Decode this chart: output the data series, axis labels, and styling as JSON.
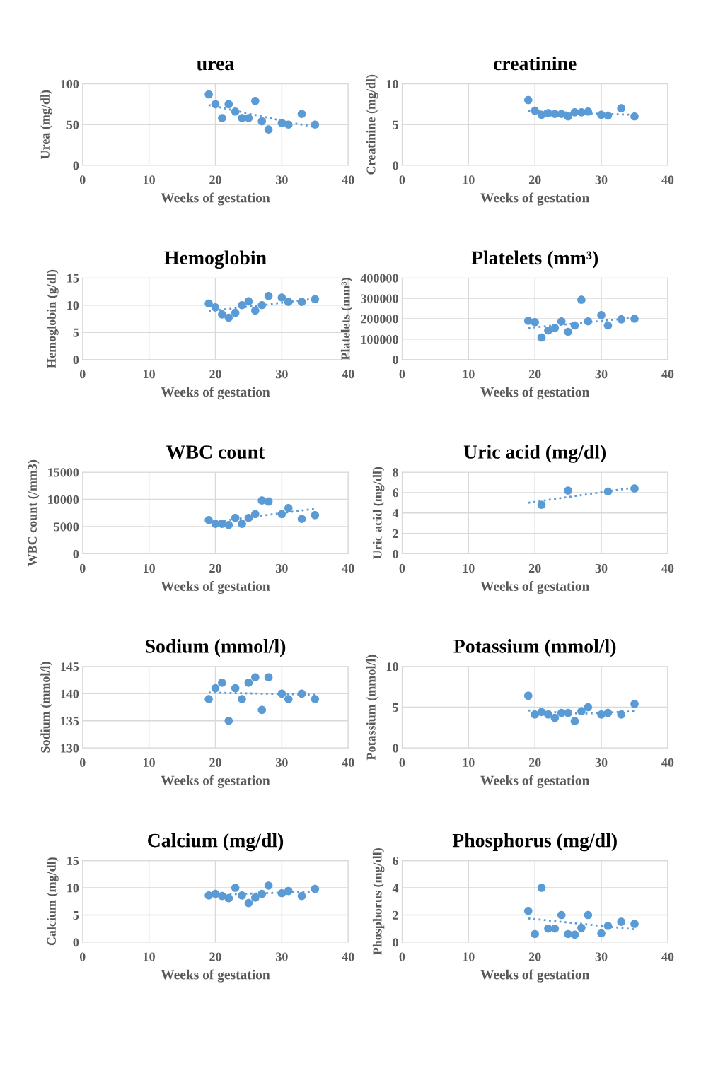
{
  "chart_data": [
    {
      "type": "scatter",
      "title": "urea",
      "xlabel": "Weeks of gestation",
      "ylabel": "Urea (mg/dl)",
      "xlim": [
        0,
        40
      ],
      "xticks": [
        0,
        10,
        20,
        30,
        40
      ],
      "ylim": [
        0,
        100
      ],
      "yticks": [
        0,
        50,
        100
      ],
      "grid": true,
      "marker": "circle",
      "series": [
        {
          "type": "scatter",
          "color": "#5b9bd5",
          "x": [
            19,
            20,
            21,
            22,
            23,
            24,
            25,
            26,
            27,
            28,
            30,
            31,
            33,
            35
          ],
          "values": [
            87,
            75,
            58,
            75,
            66,
            58,
            58,
            79,
            54,
            44,
            52,
            50,
            63,
            50
          ]
        },
        {
          "type": "line",
          "color": "#5b9bd5",
          "line_style": "dotted",
          "marker": "none",
          "x": [
            19,
            23,
            27,
            31,
            35
          ],
          "values": [
            74,
            67,
            60,
            53,
            47
          ]
        }
      ]
    },
    {
      "type": "scatter",
      "title": "creatinine",
      "xlabel": "Weeks of gestation",
      "ylabel": "Creatinine (mg/dl)",
      "xlim": [
        0,
        40
      ],
      "xticks": [
        0,
        10,
        20,
        30,
        40
      ],
      "ylim": [
        0,
        10
      ],
      "yticks": [
        0,
        5,
        10
      ],
      "grid": true,
      "marker": "circle",
      "series": [
        {
          "type": "scatter",
          "color": "#5b9bd5",
          "x": [
            19,
            20,
            21,
            22,
            23,
            24,
            25,
            26,
            27,
            28,
            30,
            31,
            33,
            35
          ],
          "values": [
            8.0,
            6.7,
            6.2,
            6.4,
            6.3,
            6.3,
            6.0,
            6.5,
            6.5,
            6.6,
            6.2,
            6.1,
            7.0,
            6.0
          ]
        },
        {
          "type": "line",
          "color": "#5b9bd5",
          "line_style": "dotted",
          "marker": "none",
          "x": [
            19,
            27,
            35
          ],
          "values": [
            6.7,
            6.4,
            6.2
          ]
        }
      ]
    },
    {
      "type": "scatter",
      "title": "Hemoglobin",
      "xlabel": "Weeks of gestation",
      "ylabel": "Hemoglobin (g/dl)",
      "xlim": [
        0,
        40
      ],
      "xticks": [
        0,
        10,
        20,
        30,
        40
      ],
      "ylim": [
        0,
        15
      ],
      "yticks": [
        0,
        5,
        10,
        15
      ],
      "grid": true,
      "marker": "circle",
      "series": [
        {
          "type": "scatter",
          "color": "#5b9bd5",
          "x": [
            19,
            20,
            21,
            22,
            23,
            24,
            25,
            26,
            27,
            28,
            30,
            31,
            33,
            35
          ],
          "values": [
            10.3,
            9.6,
            8.3,
            7.7,
            8.6,
            10.0,
            10.7,
            9.0,
            10.0,
            11.7,
            11.4,
            10.6,
            10.6,
            11.1
          ]
        },
        {
          "type": "line",
          "color": "#5b9bd5",
          "line_style": "dotted",
          "marker": "none",
          "x": [
            19,
            27,
            35
          ],
          "values": [
            8.9,
            10.0,
            11.2
          ]
        }
      ]
    },
    {
      "type": "scatter",
      "title": "Platelets (mm³)",
      "xlabel": "Weeks of gestation",
      "ylabel": "Platelets (mm³)",
      "xlim": [
        0,
        40
      ],
      "xticks": [
        0,
        10,
        20,
        30,
        40
      ],
      "ylim": [
        0,
        400000
      ],
      "yticks": [
        0,
        100000,
        200000,
        300000,
        400000
      ],
      "grid": true,
      "marker": "circle",
      "series": [
        {
          "type": "scatter",
          "color": "#5b9bd5",
          "x": [
            19,
            20,
            21,
            22,
            23,
            24,
            25,
            26,
            27,
            28,
            30,
            31,
            33,
            35
          ],
          "values": [
            190000,
            183000,
            108000,
            142000,
            155000,
            187000,
            136000,
            167000,
            293000,
            187000,
            218000,
            167000,
            197000,
            200000
          ]
        },
        {
          "type": "line",
          "color": "#5b9bd5",
          "line_style": "dotted",
          "marker": "none",
          "x": [
            19,
            35
          ],
          "values": [
            155000,
            205000
          ]
        }
      ]
    },
    {
      "type": "scatter",
      "title": "WBC count",
      "xlabel": "Weeks of gestation",
      "ylabel": "WBC count (/mm3)",
      "xlim": [
        0,
        40
      ],
      "xticks": [
        0,
        10,
        20,
        30,
        40
      ],
      "ylim": [
        0,
        15000
      ],
      "yticks": [
        0,
        5000,
        10000,
        15000
      ],
      "grid": true,
      "marker": "circle",
      "series": [
        {
          "type": "scatter",
          "color": "#5b9bd5",
          "x": [
            19,
            20,
            21,
            22,
            23,
            24,
            25,
            26,
            27,
            28,
            30,
            31,
            33,
            35
          ],
          "values": [
            6200,
            5500,
            5500,
            5300,
            6600,
            5500,
            6600,
            7300,
            9800,
            9600,
            7300,
            8400,
            6400,
            7100
          ]
        },
        {
          "type": "line",
          "color": "#5b9bd5",
          "line_style": "dotted",
          "marker": "none",
          "x": [
            19,
            35
          ],
          "values": [
            5700,
            8300
          ]
        }
      ]
    },
    {
      "type": "scatter",
      "title": "Uric acid (mg/dl)",
      "xlabel": "Weeks of gestation",
      "ylabel": "Uric acid (mg/dl)",
      "xlim": [
        0,
        40
      ],
      "xticks": [
        0,
        10,
        20,
        30,
        40
      ],
      "ylim": [
        0,
        8
      ],
      "yticks": [
        0,
        2,
        4,
        6,
        8
      ],
      "grid": true,
      "marker": "circle",
      "series": [
        {
          "type": "scatter",
          "color": "#5b9bd5",
          "x": [
            21,
            25,
            31,
            35
          ],
          "values": [
            4.8,
            6.2,
            6.1,
            6.4
          ]
        },
        {
          "type": "line",
          "color": "#5b9bd5",
          "line_style": "dotted",
          "marker": "none",
          "x": [
            19,
            35
          ],
          "values": [
            5.0,
            6.5
          ]
        }
      ]
    },
    {
      "type": "scatter",
      "title": "Sodium (mmol/l)",
      "xlabel": "Weeks of gestation",
      "ylabel": "Sodium (mmol/l)",
      "xlim": [
        0,
        40
      ],
      "xticks": [
        0,
        10,
        20,
        30,
        40
      ],
      "ylim": [
        130,
        145
      ],
      "yticks": [
        130,
        135,
        140,
        145
      ],
      "grid": true,
      "marker": "circle",
      "series": [
        {
          "type": "scatter",
          "color": "#5b9bd5",
          "x": [
            19,
            20,
            21,
            22,
            23,
            24,
            25,
            26,
            27,
            28,
            30,
            31,
            33,
            35
          ],
          "values": [
            139,
            141,
            142,
            135,
            141,
            139,
            142,
            143,
            137,
            143,
            140,
            139,
            140,
            139
          ]
        },
        {
          "type": "line",
          "color": "#5b9bd5",
          "line_style": "dotted",
          "marker": "none",
          "x": [
            19,
            35
          ],
          "values": [
            140.2,
            139.8
          ]
        }
      ]
    },
    {
      "type": "scatter",
      "title": "Potassium (mmol/l)",
      "xlabel": "Weeks of gestation",
      "ylabel": "Potassium (mmol/l)",
      "xlim": [
        0,
        40
      ],
      "xticks": [
        0,
        10,
        20,
        30,
        40
      ],
      "ylim": [
        0,
        10
      ],
      "yticks": [
        0,
        5,
        10
      ],
      "grid": true,
      "marker": "circle",
      "series": [
        {
          "type": "scatter",
          "color": "#5b9bd5",
          "x": [
            19,
            20,
            21,
            22,
            23,
            24,
            25,
            26,
            27,
            28,
            30,
            31,
            33,
            35
          ],
          "values": [
            6.4,
            4.1,
            4.4,
            4.1,
            3.7,
            4.3,
            4.3,
            3.3,
            4.5,
            5.0,
            4.1,
            4.3,
            4.1,
            5.4
          ]
        },
        {
          "type": "line",
          "color": "#5b9bd5",
          "line_style": "dotted",
          "marker": "none",
          "x": [
            19,
            27,
            35
          ],
          "values": [
            4.6,
            4.2,
            4.5
          ]
        }
      ]
    },
    {
      "type": "scatter",
      "title": "Calcium (mg/dl)",
      "xlabel": "Weeks of gestation",
      "ylabel": "Calcium (mg/dl)",
      "xlim": [
        0,
        40
      ],
      "xticks": [
        0,
        10,
        20,
        30,
        40
      ],
      "ylim": [
        0,
        15
      ],
      "yticks": [
        0,
        5,
        10,
        15
      ],
      "grid": true,
      "marker": "circle",
      "series": [
        {
          "type": "scatter",
          "color": "#5b9bd5",
          "x": [
            19,
            20,
            21,
            22,
            23,
            24,
            25,
            26,
            27,
            28,
            30,
            31,
            33,
            35
          ],
          "values": [
            8.6,
            8.9,
            8.5,
            8.1,
            10.0,
            8.6,
            7.2,
            8.2,
            8.9,
            10.4,
            9.0,
            9.4,
            8.5,
            9.8
          ]
        },
        {
          "type": "line",
          "color": "#5b9bd5",
          "line_style": "dotted",
          "marker": "none",
          "x": [
            19,
            35
          ],
          "values": [
            8.7,
            9.3
          ]
        }
      ]
    },
    {
      "type": "scatter",
      "title": "Phosphorus (mg/dl)",
      "xlabel": "Weeks of gestation",
      "ylabel": "Phosphorus (mg/dl)",
      "xlim": [
        0,
        40
      ],
      "xticks": [
        0,
        10,
        20,
        30,
        40
      ],
      "ylim": [
        0,
        6
      ],
      "yticks": [
        0,
        2,
        4,
        6
      ],
      "grid": true,
      "marker": "circle",
      "series": [
        {
          "type": "scatter",
          "color": "#5b9bd5",
          "x": [
            19,
            20,
            21,
            22,
            23,
            24,
            25,
            26,
            27,
            28,
            30,
            31,
            33,
            35
          ],
          "values": [
            2.3,
            0.6,
            4.0,
            1.0,
            1.0,
            2.0,
            0.6,
            0.55,
            1.05,
            2.0,
            0.65,
            1.2,
            1.5,
            1.35
          ]
        },
        {
          "type": "line",
          "color": "#5b9bd5",
          "line_style": "dotted",
          "marker": "none",
          "x": [
            19,
            35
          ],
          "values": [
            1.75,
            0.95
          ]
        }
      ]
    }
  ]
}
